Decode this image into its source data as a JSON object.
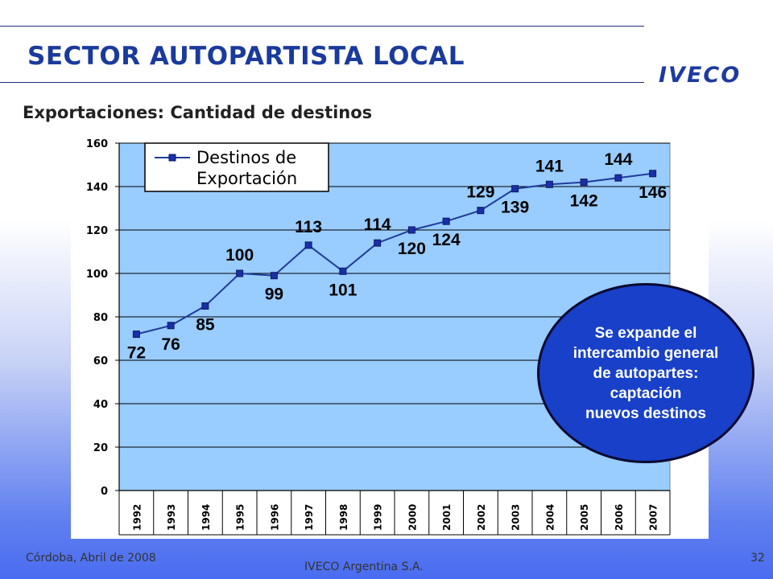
{
  "header": {
    "title": "SECTOR AUTOPARTISTA LOCAL",
    "logo": "IVECO",
    "subtitle": "Exportaciones: Cantidad de destinos"
  },
  "footer": {
    "left": "Córdoba, Abril de 2008",
    "center": "IVECO Argentina S.A.",
    "page_number": "32"
  },
  "callout": {
    "text": "Se expande el\nintercambio general\nde autopartes:\ncaptación\nnuevos destinos"
  },
  "colors": {
    "plot_background": "#99ccff",
    "line": "#1f3c9a",
    "callout_fill": "#1840c8",
    "title": "#1a3a9c"
  },
  "chart_data": {
    "type": "line",
    "title": "",
    "xlabel": "",
    "ylabel": "",
    "categories": [
      "1992",
      "1993",
      "1994",
      "1995",
      "1996",
      "1997",
      "1998",
      "1999",
      "2000",
      "2001",
      "2002",
      "2003",
      "2004",
      "2005",
      "2006",
      "2007"
    ],
    "series": [
      {
        "name": "Destinos de Exportación",
        "values": [
          72,
          76,
          85,
          100,
          99,
          113,
          101,
          114,
          120,
          124,
          129,
          139,
          141,
          142,
          144,
          146
        ]
      }
    ],
    "ylim": [
      0,
      160
    ],
    "yticks": [
      0,
      20,
      40,
      60,
      80,
      100,
      120,
      140,
      160
    ],
    "grid": true,
    "legend": "top-left",
    "data_labels": true
  }
}
